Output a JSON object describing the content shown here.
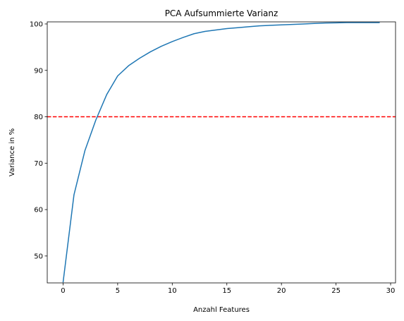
{
  "chart_data": {
    "type": "line",
    "title": "PCA Aufsummierte Varianz",
    "xlabel": "Anzahl Features",
    "ylabel": "Variance in %",
    "xlim": [
      -1.45,
      30.45
    ],
    "ylim": [
      44.2,
      100.45
    ],
    "xticks": [
      0,
      5,
      10,
      15,
      20,
      25,
      30
    ],
    "yticks": [
      50,
      60,
      70,
      80,
      90,
      100
    ],
    "grid": false,
    "series": [
      {
        "color": "#1f77b4",
        "x": [
          0,
          1,
          2,
          3,
          4,
          5,
          6,
          7,
          8,
          9,
          10,
          11,
          12,
          13,
          14,
          15,
          16,
          17,
          18,
          19,
          20,
          21,
          22,
          23,
          24,
          25,
          26,
          27,
          28,
          29
        ],
        "y": [
          44.3,
          63.2,
          72.7,
          79.3,
          84.8,
          88.8,
          91.0,
          92.6,
          94.0,
          95.2,
          96.2,
          97.1,
          97.9,
          98.4,
          98.7,
          99.0,
          99.2,
          99.4,
          99.6,
          99.7,
          99.8,
          99.9,
          100.0,
          100.1,
          100.2,
          100.25,
          100.3,
          100.3,
          100.3,
          100.3
        ]
      }
    ],
    "reference_line": {
      "y": 80,
      "color": "#ff0000",
      "style": "dashed"
    }
  }
}
